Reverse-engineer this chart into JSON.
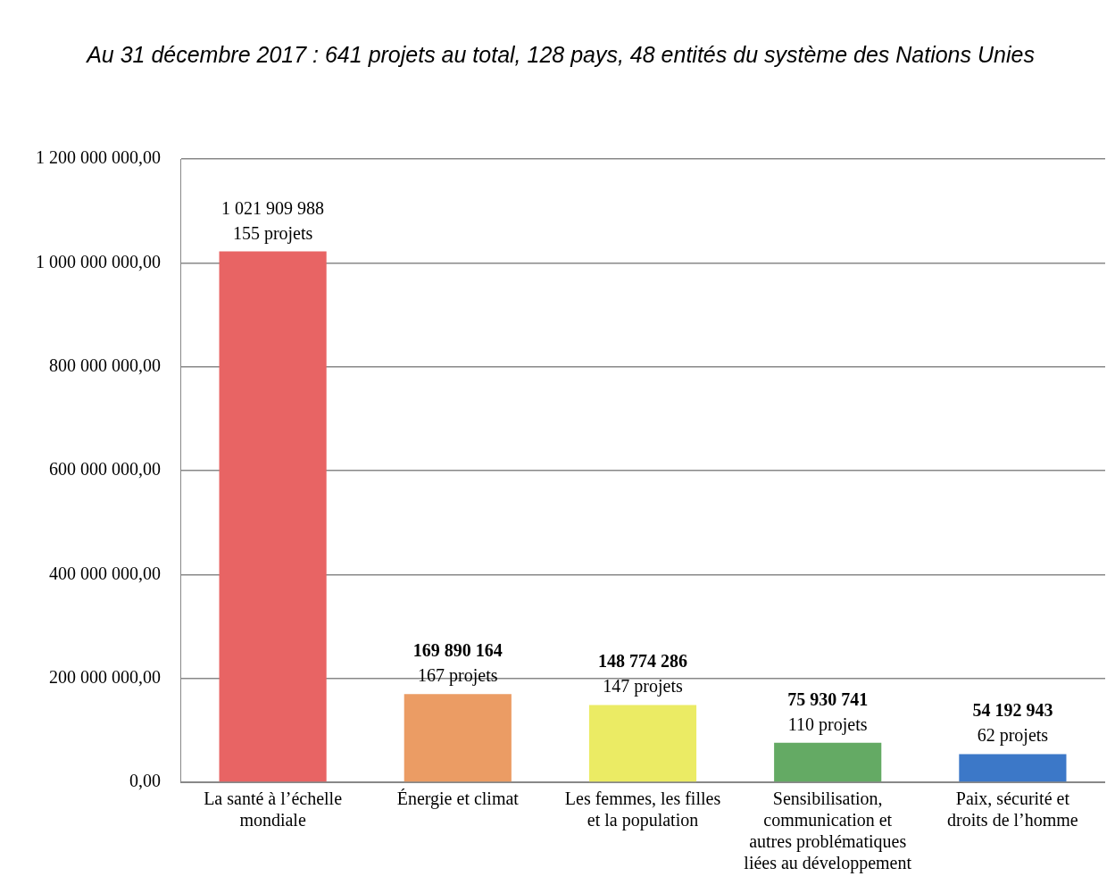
{
  "chart_data": {
    "type": "bar",
    "title": "Au 31 décembre 2017 : 641 projets au total, 128 pays, 48 entités du système des Nations Unies",
    "categories": [
      "La santé à l’échelle mondiale",
      "Énergie et climat",
      "Les femmes, les filles et la population",
      "Sensibilisation, communication et autres problématiques liées au développement",
      "Paix, sécurité et droits de l’homme"
    ],
    "values": [
      1021909988,
      169890164,
      148774286,
      75930741,
      54192943
    ],
    "colors": [
      "#e86464",
      "#eb9c64",
      "#ebeb64",
      "#64aa64",
      "#3c78c8"
    ],
    "value_labels": [
      "1 021 909 988",
      "169 890 164",
      "148 774 286",
      "75 930 741",
      "54 192 943"
    ],
    "annotations": [
      {
        "text": "155 projets",
        "x": "La santé à l’échelle mondiale",
        "y": 1021909988
      },
      {
        "text": "167 projets",
        "x": "Énergie et climat",
        "y": 169890164
      },
      {
        "text": "147 projets",
        "x": "Les femmes, les filles et la population",
        "y": 148774286
      },
      {
        "text": "110 projets",
        "x": "Sensibilisation, communication et autres problématiques liées au développement",
        "y": 75930741
      },
      {
        "text": "62 projets",
        "x": "Paix, sécurité et droits de l’homme",
        "y": 54192943
      }
    ],
    "ylim": [
      0,
      1200000000
    ],
    "yticks": [
      {
        "value": 0,
        "label": "0,00"
      },
      {
        "value": 200000000,
        "label": "200 000 000,00"
      },
      {
        "value": 400000000,
        "label": "400 000 000,00"
      },
      {
        "value": 600000000,
        "label": "600 000 000,00"
      },
      {
        "value": 800000000,
        "label": "800 000 000,00"
      },
      {
        "value": 1000000000,
        "label": "1 000 000 000,00"
      },
      {
        "value": 1200000000,
        "label": "1 200 000 000,00"
      }
    ],
    "grid": "y",
    "legend": false
  }
}
